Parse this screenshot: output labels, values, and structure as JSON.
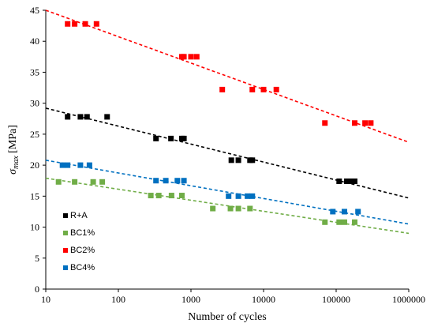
{
  "chart_data": {
    "type": "scatter",
    "x_scale": "log",
    "xlabel": "Number of cycles",
    "ylabel_symbol": "σ",
    "ylabel_sub": "max",
    "ylabel_unit": " [MPa]",
    "xlim": [
      10,
      1000000
    ],
    "ylim": [
      0,
      45
    ],
    "x_ticks": [
      10,
      100,
      1000,
      10000,
      100000,
      1000000
    ],
    "x_tick_labels": [
      "10",
      "100",
      "1000",
      "10000",
      "100000",
      "1000000"
    ],
    "y_ticks": [
      0,
      5,
      10,
      15,
      20,
      25,
      30,
      35,
      40,
      45
    ],
    "y_tick_labels": [
      "0",
      "5",
      "10",
      "15",
      "20",
      "25",
      "30",
      "35",
      "40",
      "45"
    ],
    "grid": false,
    "legend_placement": "left-bottom",
    "series": [
      {
        "name": "R+A",
        "color": "#000000",
        "points": [
          [
            20,
            27.8
          ],
          [
            30,
            27.8
          ],
          [
            37,
            27.8
          ],
          [
            70,
            27.8
          ],
          [
            330,
            24.3
          ],
          [
            530,
            24.3
          ],
          [
            750,
            24.3
          ],
          [
            800,
            24.3
          ],
          [
            3600,
            20.8
          ],
          [
            4500,
            20.8
          ],
          [
            6500,
            20.8
          ],
          [
            7000,
            20.8
          ],
          [
            110000,
            17.4
          ],
          [
            140000,
            17.4
          ],
          [
            160000,
            17.4
          ],
          [
            180000,
            17.4
          ]
        ],
        "trend": [
          [
            10,
            29.2
          ],
          [
            1000000,
            14.7
          ]
        ]
      },
      {
        "name": "BC1%",
        "color": "#70ad47",
        "points": [
          [
            15,
            17.3
          ],
          [
            25,
            17.3
          ],
          [
            45,
            17.3
          ],
          [
            60,
            17.3
          ],
          [
            280,
            15.1
          ],
          [
            360,
            15.1
          ],
          [
            540,
            15.1
          ],
          [
            750,
            15.1
          ],
          [
            2000,
            13.0
          ],
          [
            3500,
            13.0
          ],
          [
            4500,
            13.0
          ],
          [
            6500,
            13.0
          ],
          [
            70000,
            10.8
          ],
          [
            110000,
            10.8
          ],
          [
            130000,
            10.8
          ],
          [
            180000,
            10.8
          ]
        ],
        "trend": [
          [
            10,
            17.9
          ],
          [
            1000000,
            9.0
          ]
        ]
      },
      {
        "name": "BC2%",
        "color": "#ff0000",
        "points": [
          [
            20,
            42.8
          ],
          [
            25,
            42.8
          ],
          [
            35,
            42.8
          ],
          [
            50,
            42.8
          ],
          [
            750,
            37.5
          ],
          [
            800,
            37.5
          ],
          [
            1000,
            37.5
          ],
          [
            1200,
            37.5
          ],
          [
            2700,
            32.2
          ],
          [
            7000,
            32.2
          ],
          [
            10000,
            32.2
          ],
          [
            15000,
            32.2
          ],
          [
            70000,
            26.8
          ],
          [
            180000,
            26.8
          ],
          [
            250000,
            26.8
          ],
          [
            300000,
            26.8
          ]
        ],
        "trend": [
          [
            10,
            45.0
          ],
          [
            1000000,
            23.7
          ]
        ]
      },
      {
        "name": "BC4%",
        "color": "#0070c0",
        "points": [
          [
            17,
            20.0
          ],
          [
            20,
            20.0
          ],
          [
            30,
            20.0
          ],
          [
            40,
            20.0
          ],
          [
            330,
            17.5
          ],
          [
            450,
            17.5
          ],
          [
            650,
            17.5
          ],
          [
            800,
            17.5
          ],
          [
            3300,
            15.0
          ],
          [
            4500,
            15.0
          ],
          [
            6000,
            15.0
          ],
          [
            7000,
            15.0
          ],
          [
            90000,
            12.5
          ],
          [
            130000,
            12.5
          ],
          [
            200000,
            12.5
          ]
        ],
        "trend": [
          [
            10,
            20.8
          ],
          [
            1000000,
            10.5
          ]
        ]
      }
    ]
  }
}
